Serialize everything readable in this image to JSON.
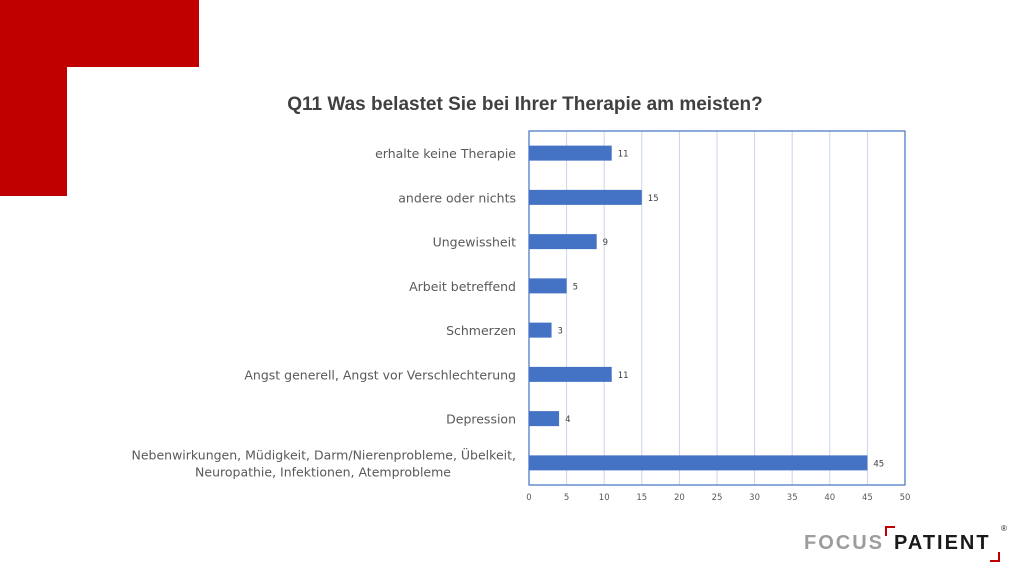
{
  "chart_data": {
    "type": "bar",
    "orientation": "horizontal",
    "title": "Q11 Was belastet Sie bei Ihrer Therapie am meisten?",
    "categories": [
      "erhalte keine Therapie",
      "andere oder nichts",
      "Ungewissheit",
      "Arbeit betreffend",
      "Schmerzen",
      "Angst generell, Angst vor Verschlechterung",
      "Depression",
      "Nebenwirkungen, Müdigkeit, Darm/Nierenprobleme, Übelkeit, Neuropathie, Infektionen, Atemprobleme"
    ],
    "category_lines": [
      [
        "erhalte keine Therapie"
      ],
      [
        "andere oder nichts"
      ],
      [
        "Ungewissheit"
      ],
      [
        "Arbeit betreffend"
      ],
      [
        "Schmerzen"
      ],
      [
        "Angst generell, Angst vor Verschlechterung"
      ],
      [
        "Depression"
      ],
      [
        "Nebenwirkungen, Müdigkeit, Darm/Nierenprobleme, Übelkeit,",
        "Neuropathie, Infektionen, Atemprobleme"
      ]
    ],
    "values": [
      11,
      15,
      9,
      5,
      3,
      11,
      4,
      45
    ],
    "xlim": [
      0,
      50
    ],
    "xticks": [
      0,
      5,
      10,
      15,
      20,
      25,
      30,
      35,
      40,
      45,
      50
    ],
    "xlabel": "",
    "ylabel": "",
    "bar_color": "#4472c4",
    "grid_color": "#c9d5ea",
    "border_color": "#4472c4",
    "grid": true,
    "data_labels": true
  },
  "logo": {
    "word1": "FOCUS",
    "word2": "PATIENT",
    "mark": "®"
  },
  "colors": {
    "accent_red": "#c00000"
  }
}
